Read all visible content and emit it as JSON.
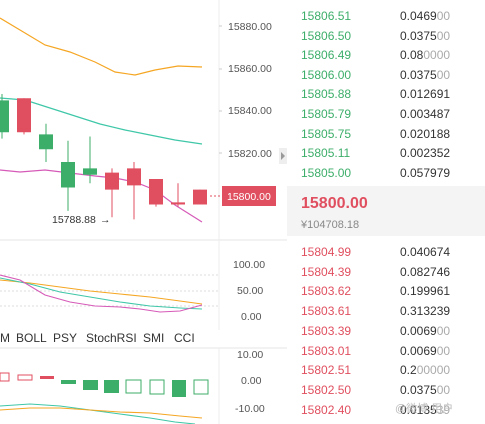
{
  "price_axis": {
    "ticks": [
      "15880.00",
      "15860.00",
      "15840.00",
      "15820.00"
    ],
    "current_price_label": "15800.00"
  },
  "kline": {
    "low_marker_label": "15788.88",
    "low_marker_arrow": "→",
    "candles": [
      {
        "open": 15845,
        "close": 15830,
        "high": 15848,
        "low": 15827,
        "dir": "up"
      },
      {
        "open": 15846,
        "close": 15830,
        "high": 15846,
        "low": 15829,
        "dir": "down"
      },
      {
        "open": 15829,
        "close": 15822,
        "high": 15834,
        "low": 15816,
        "dir": "up"
      },
      {
        "open": 15816,
        "close": 15804,
        "high": 15826,
        "low": 15793,
        "dir": "up"
      },
      {
        "open": 15813,
        "close": 15810,
        "high": 15828,
        "low": 15806,
        "dir": "up"
      },
      {
        "open": 15811,
        "close": 15803,
        "high": 15813,
        "low": 15790,
        "dir": "down"
      },
      {
        "open": 15813,
        "close": 15805,
        "high": 15816,
        "low": 15789,
        "dir": "down"
      },
      {
        "open": 15808,
        "close": 15796,
        "high": 15808,
        "low": 15795,
        "dir": "down"
      },
      {
        "open": 15797,
        "close": 15796,
        "high": 15806,
        "low": 15795,
        "dir": "down"
      },
      {
        "open": 15803,
        "close": 15796,
        "high": 15803,
        "low": 15796,
        "dir": "down"
      }
    ]
  },
  "indicator_axis": {
    "ticks": [
      "100.00",
      "50.00",
      "0.00"
    ]
  },
  "indicator_tabs": [
    "M",
    "BOLL",
    "PSY",
    "StochRSI",
    "SMI",
    "CCI"
  ],
  "macd_axis": {
    "ticks": [
      "10.00",
      "0.00",
      "-10.00"
    ]
  },
  "colors": {
    "up": "#3dae6a",
    "down": "#e04f5f",
    "ma_orange": "#f5a623",
    "ma_teal": "#3fc7a8",
    "ma_pink": "#d65ab8"
  },
  "orderbook": {
    "asks": [
      {
        "price": "15806.51",
        "amount": "0.0469",
        "amount_dim": "00"
      },
      {
        "price": "15806.50",
        "amount": "0.0375",
        "amount_dim": "00"
      },
      {
        "price": "15806.49",
        "amount": "0.08",
        "amount_dim": "0000"
      },
      {
        "price": "15806.00",
        "amount": "0.0375",
        "amount_dim": "00"
      },
      {
        "price": "15805.88",
        "amount": "0.012691",
        "amount_dim": ""
      },
      {
        "price": "15805.79",
        "amount": "0.003487",
        "amount_dim": ""
      },
      {
        "price": "15805.75",
        "amount": "0.020188",
        "amount_dim": ""
      },
      {
        "price": "15805.11",
        "amount": "0.002352",
        "amount_dim": ""
      },
      {
        "price": "15805.00",
        "amount": "0.057979",
        "amount_dim": ""
      }
    ],
    "mid": {
      "price": "15800.00",
      "converted": "¥104708.18"
    },
    "bids": [
      {
        "price": "15804.99",
        "amount": "0.040674",
        "amount_dim": ""
      },
      {
        "price": "15804.39",
        "amount": "0.082746",
        "amount_dim": ""
      },
      {
        "price": "15803.62",
        "amount": "0.199961",
        "amount_dim": ""
      },
      {
        "price": "15803.61",
        "amount": "0.313239",
        "amount_dim": ""
      },
      {
        "price": "15803.39",
        "amount": "0.0069",
        "amount_dim": "00"
      },
      {
        "price": "15803.01",
        "amount": "0.0069",
        "amount_dim": "00"
      },
      {
        "price": "15802.51",
        "amount": "0.2",
        "amount_dim": "00000"
      },
      {
        "price": "15802.50",
        "amount": "0.0375",
        "amount_dim": "00"
      },
      {
        "price": "15802.40",
        "amount": "0.0135",
        "amount_dim": "39"
      }
    ]
  },
  "watermark": "@微博 用户"
}
